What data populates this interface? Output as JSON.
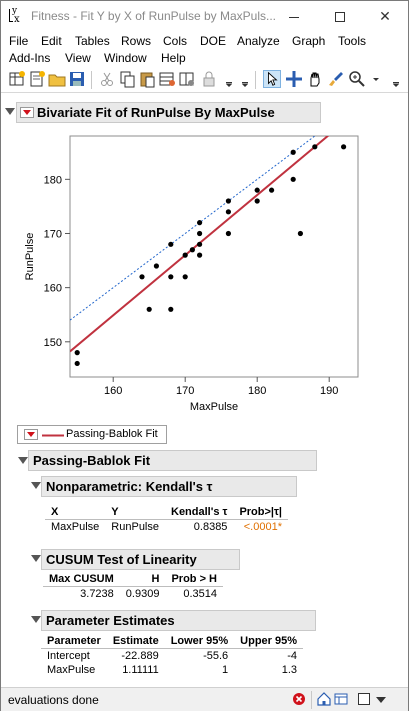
{
  "window": {
    "title": "Fitness - Fit Y by X of RunPulse by MaxPuls..."
  },
  "menu": {
    "row1": [
      "File",
      "Edit",
      "Tables",
      "Rows",
      "Cols",
      "DOE",
      "Analyze",
      "Graph",
      "Tools"
    ],
    "row2": [
      "Add-Ins",
      "View",
      "Window",
      "Help"
    ]
  },
  "report": {
    "main_title": "Bivariate Fit of RunPulse By MaxPulse",
    "legend_label": "Passing-Bablok Fit",
    "fit_title": "Passing-Bablok Fit",
    "kendall": {
      "title": "Nonparametric: Kendall's τ",
      "headers": [
        "X",
        "Y",
        "Kendall's τ",
        "Prob>|τ|"
      ],
      "row": [
        "MaxPulse",
        "RunPulse",
        "0.8385",
        "<.0001*"
      ]
    },
    "cusum": {
      "title": "CUSUM Test of Linearity",
      "headers": [
        "Max CUSUM",
        "H",
        "Prob > H"
      ],
      "row": [
        "3.7238",
        "0.9309",
        "0.3514"
      ]
    },
    "params": {
      "title": "Parameter Estimates",
      "headers": [
        "Parameter",
        "Estimate",
        "Lower 95%",
        "Upper 95%"
      ],
      "rows": [
        [
          "Intercept",
          "-22.889",
          "-55.6",
          "-4"
        ],
        [
          "MaxPulse",
          "1.11111",
          "1",
          "1.3"
        ]
      ]
    }
  },
  "status": {
    "text": "evaluations done"
  },
  "colors": {
    "fit_line": "#c0323f",
    "identity_line": "#2266cc",
    "significant_p": "#e07000",
    "close_red": "#d0121b"
  },
  "chart_data": {
    "type": "scatter",
    "xlabel": "MaxPulse",
    "ylabel": "RunPulse",
    "xlim": [
      154,
      194
    ],
    "ylim": [
      143.5,
      188
    ],
    "xticks": [
      160,
      170,
      180,
      190
    ],
    "yticks": [
      150,
      160,
      170,
      180
    ],
    "points": [
      [
        155,
        148
      ],
      [
        155,
        146
      ],
      [
        164,
        162
      ],
      [
        165,
        156
      ],
      [
        166,
        164
      ],
      [
        168,
        168
      ],
      [
        168,
        162
      ],
      [
        168,
        156
      ],
      [
        170,
        162
      ],
      [
        170,
        166
      ],
      [
        171,
        167
      ],
      [
        172,
        172
      ],
      [
        172,
        170
      ],
      [
        172,
        168
      ],
      [
        172,
        166
      ],
      [
        176,
        176
      ],
      [
        176,
        174
      ],
      [
        176,
        170
      ],
      [
        180,
        178
      ],
      [
        180,
        176
      ],
      [
        182,
        178
      ],
      [
        185,
        185
      ],
      [
        185,
        180
      ],
      [
        186,
        170
      ],
      [
        188,
        186
      ],
      [
        192,
        186
      ]
    ],
    "lines": [
      {
        "name": "Passing-Bablok Fit",
        "intercept": -22.889,
        "slope": 1.11111,
        "style": "solid"
      },
      {
        "intercept": 0,
        "slope": 1,
        "style": "dotted"
      }
    ]
  }
}
